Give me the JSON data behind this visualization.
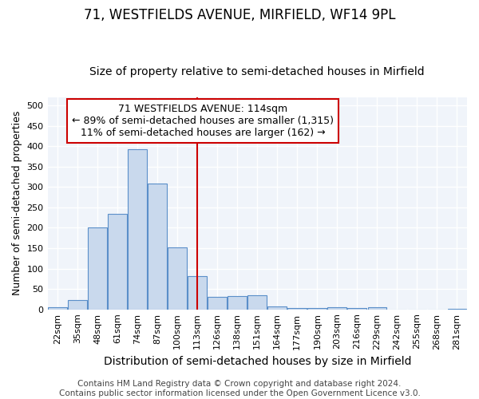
{
  "title": "71, WESTFIELDS AVENUE, MIRFIELD, WF14 9PL",
  "subtitle": "Size of property relative to semi-detached houses in Mirfield",
  "xlabel": "Distribution of semi-detached houses by size in Mirfield",
  "ylabel": "Number of semi-detached properties",
  "footer1": "Contains HM Land Registry data © Crown copyright and database right 2024.",
  "footer2": "Contains public sector information licensed under the Open Government Licence v3.0.",
  "categories": [
    "22sqm",
    "35sqm",
    "48sqm",
    "61sqm",
    "74sqm",
    "87sqm",
    "100sqm",
    "113sqm",
    "126sqm",
    "138sqm",
    "151sqm",
    "164sqm",
    "177sqm",
    "190sqm",
    "203sqm",
    "216sqm",
    "229sqm",
    "242sqm",
    "255sqm",
    "268sqm",
    "281sqm"
  ],
  "values": [
    5,
    22,
    200,
    235,
    393,
    308,
    152,
    82,
    30,
    32,
    35,
    8,
    4,
    4,
    5,
    4,
    5,
    0,
    0,
    0,
    2
  ],
  "bar_color": "#c9d9ed",
  "bar_edge_color": "#5b8fc9",
  "vline_color": "#cc0000",
  "annotation_title": "71 WESTFIELDS AVENUE: 114sqm",
  "annotation_line1": "← 89% of semi-detached houses are smaller (1,315)",
  "annotation_line2": "11% of semi-detached houses are larger (162) →",
  "annotation_box_color": "#ffffff",
  "annotation_box_edge_color": "#cc0000",
  "bg_color": "#f0f4fa",
  "ylim": [
    0,
    520
  ],
  "yticks": [
    0,
    50,
    100,
    150,
    200,
    250,
    300,
    350,
    400,
    450,
    500
  ],
  "title_fontsize": 12,
  "subtitle_fontsize": 10,
  "xlabel_fontsize": 10,
  "ylabel_fontsize": 9,
  "tick_fontsize": 8,
  "footer_fontsize": 7.5,
  "annotation_fontsize": 9
}
